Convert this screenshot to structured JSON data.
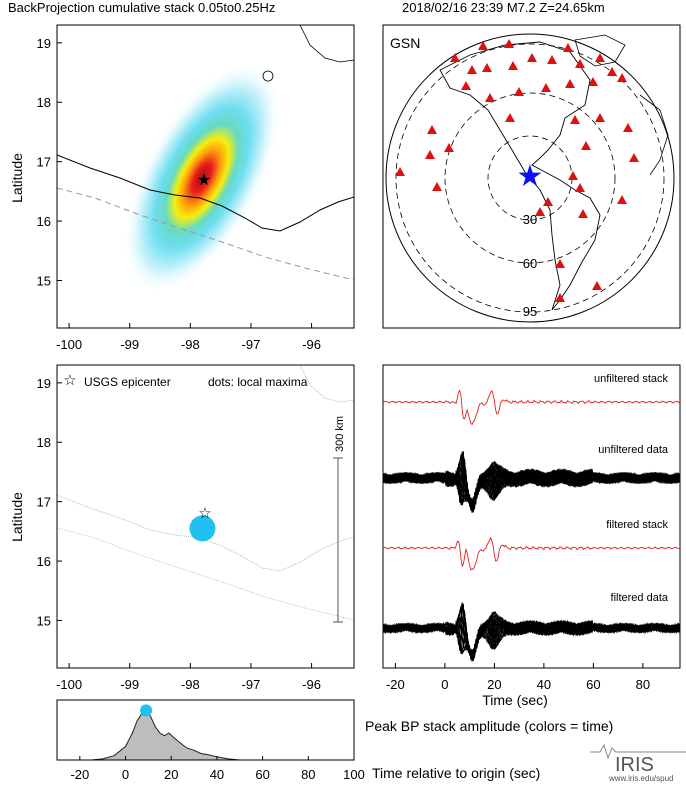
{
  "header": {
    "title_left": "BackProjection cumulative stack 0.05to0.25Hz",
    "title_right": "2018/02/16 23:39  M7.2  Z=24.65km"
  },
  "chart_data": [
    {
      "type": "heatmap",
      "panel": "bp-stack-map",
      "ylabel": "Latitude",
      "xlim": [
        -100.2,
        -95.3
      ],
      "ylim": [
        14.2,
        19.3
      ],
      "x_ticks": [
        "-100",
        "-99",
        "-98",
        "-97",
        "-96"
      ],
      "y_ticks": [
        "19",
        "18",
        "17",
        "16",
        "15"
      ],
      "epicenter": {
        "lon": -97.65,
        "lat": 16.65
      },
      "peak": {
        "lon": -97.7,
        "lat": 16.6
      }
    },
    {
      "type": "scatter",
      "panel": "station-map",
      "network_label": "GSN",
      "distance_rings": [
        "30",
        "60",
        "95"
      ]
    },
    {
      "type": "scatter",
      "panel": "local-maxima-map",
      "ylabel": "Latitude",
      "legend_epicenter": "USGS epicenter",
      "legend_dots": "dots: local maxima",
      "scale_label": "300 km",
      "xlim": [
        -100.2,
        -95.3
      ],
      "ylim": [
        14.2,
        19.3
      ],
      "x_ticks": [
        "-100",
        "-99",
        "-98",
        "-97",
        "-96"
      ],
      "y_ticks": [
        "19",
        "18",
        "17",
        "16",
        "15"
      ],
      "maxima": [
        {
          "lon": -97.8,
          "lat": 16.55,
          "time": 9
        }
      ],
      "epicenter": {
        "lon": -97.65,
        "lat": 16.65
      }
    },
    {
      "type": "line",
      "panel": "waveforms",
      "xlabel": "Time (sec)",
      "xlim": [
        -25,
        95
      ],
      "x_ticks": [
        "-20",
        "0",
        "20",
        "40",
        "60",
        "80"
      ],
      "trace_labels": [
        "unfiltered stack",
        "unfiltered data",
        "filtered stack",
        "filtered data"
      ]
    },
    {
      "type": "area",
      "panel": "peak-bp-stack-amplitude",
      "title": "Peak BP stack amplitude (colors = time)",
      "xlabel": "Time relative to origin (sec)",
      "xlim": [
        -30,
        100
      ],
      "x_ticks": [
        "-20",
        "0",
        "20",
        "40",
        "60",
        "80",
        "100"
      ],
      "x": [
        -30,
        -15,
        -10,
        -5,
        0,
        3,
        5,
        7,
        9,
        11,
        13,
        15,
        17,
        19,
        21,
        23,
        25,
        27,
        30,
        33,
        36,
        40,
        45,
        50,
        100
      ],
      "y": [
        0,
        0,
        0.02,
        0.08,
        0.25,
        0.5,
        0.72,
        0.85,
        0.92,
        0.8,
        0.62,
        0.5,
        0.45,
        0.5,
        0.42,
        0.35,
        0.28,
        0.22,
        0.18,
        0.12,
        0.1,
        0.06,
        0.02,
        0.0,
        0
      ],
      "peak_marker": {
        "x": 9,
        "y": 0.92
      }
    }
  ],
  "logo": {
    "text": "IRIS",
    "url_text": "www.iris.edu/spud"
  }
}
